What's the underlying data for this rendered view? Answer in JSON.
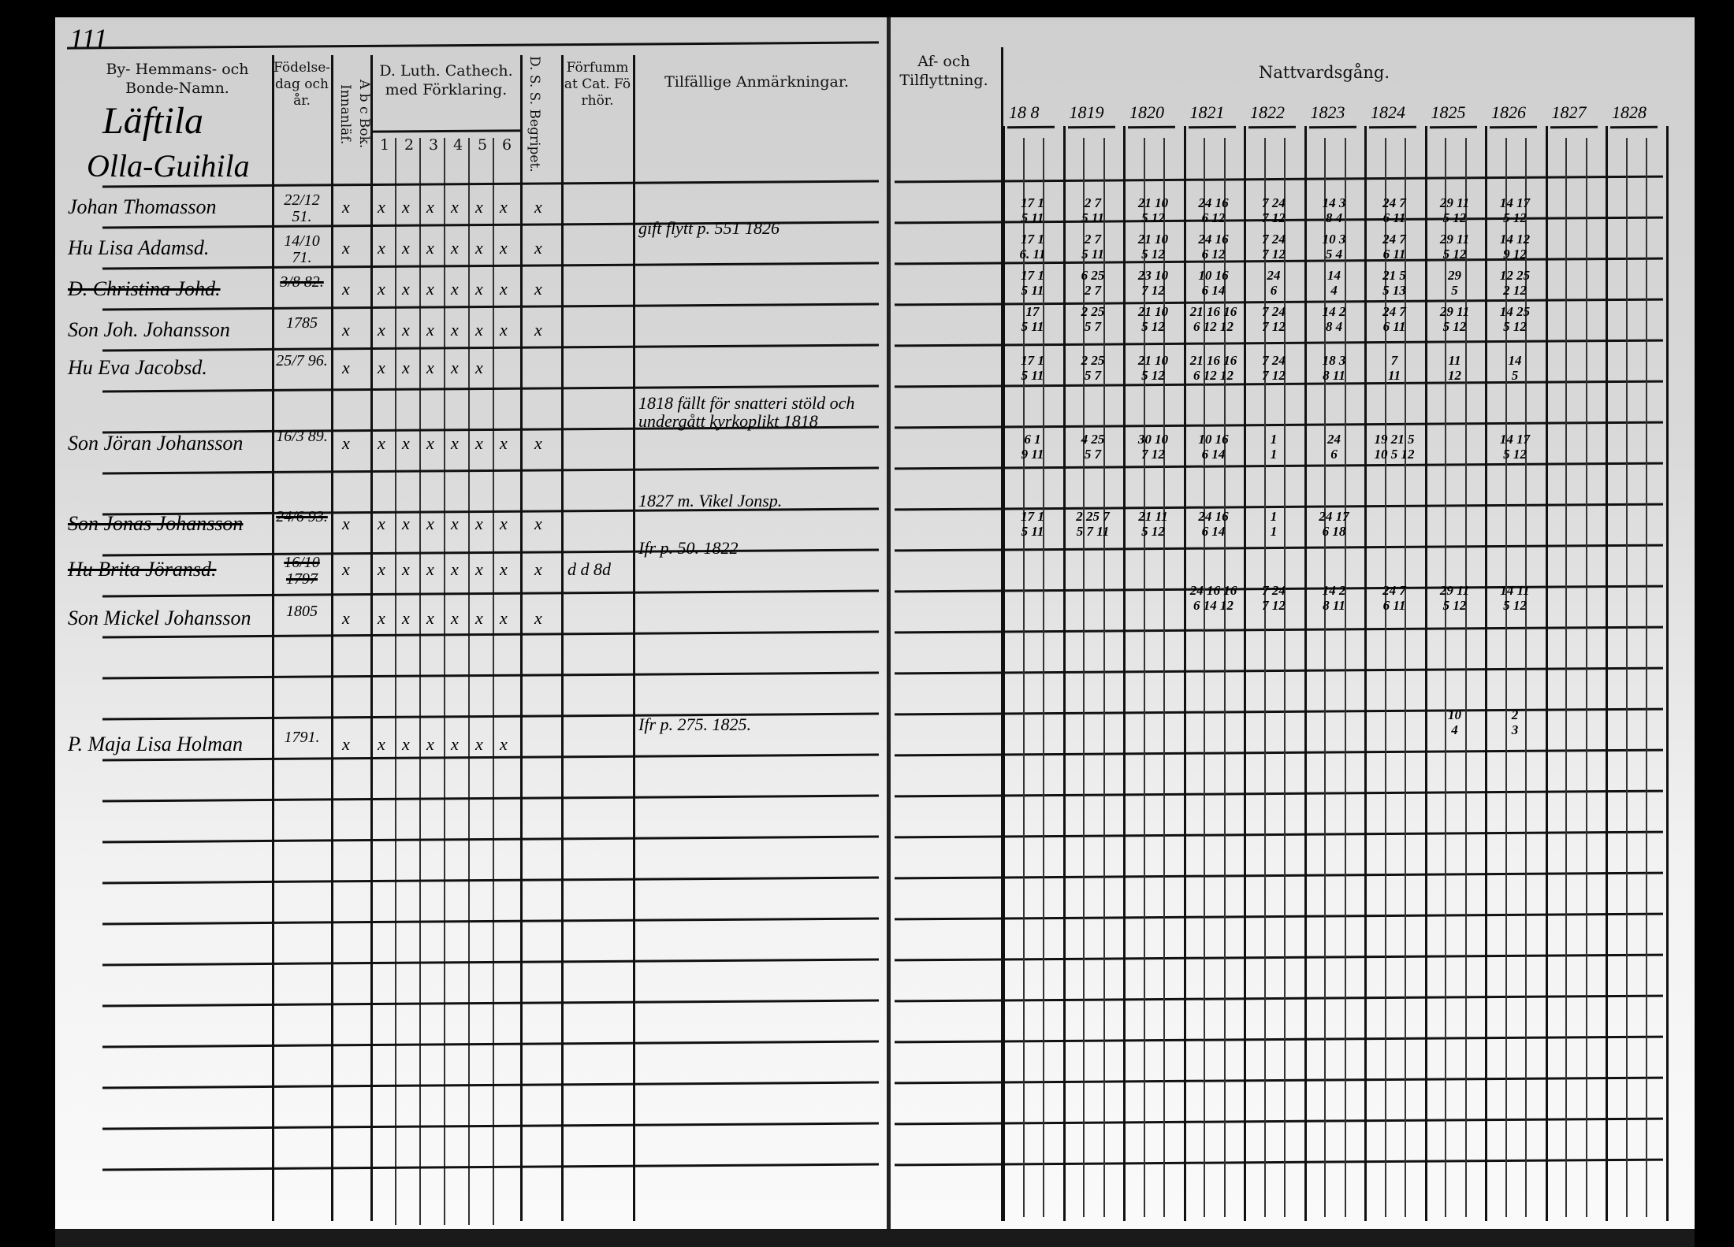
{
  "page_number": "111",
  "left_page": {
    "headers": {
      "name": "By- Hemmans- och Bonde-Namn.",
      "birth": "Födelse-dag och år.",
      "abc": "A b c Bok. Innanläf.",
      "catechism": "D. Luth. Cathech. med Förklaring.",
      "catechism_parts": [
        "1",
        "2",
        "3",
        "4",
        "5",
        "6"
      ],
      "dss": "D. S. S. Begripet.",
      "forfum": "Förfummat Cat. Förhör.",
      "remarks": "Tilfällige Anmärkningar."
    },
    "village": "Läftila",
    "farm": "Olla-Guihila",
    "persons": [
      {
        "name": "Johan Thomasson",
        "birth": "22/12 51.",
        "abc": "x",
        "cat": [
          "x",
          "x",
          "x",
          "x",
          "x",
          "x"
        ],
        "dss": "x",
        "forfum": "",
        "remark": "",
        "struck": false
      },
      {
        "name": "Hu Lisa Adamsd.",
        "birth": "14/10 71.",
        "abc": "x",
        "cat": [
          "x",
          "x",
          "x",
          "x",
          "x",
          "x"
        ],
        "dss": "x",
        "forfum": "",
        "remark": "gift flytt p. 551 1826",
        "struck": false
      },
      {
        "name": "D. Christina Johd.",
        "birth": "3/8 82.",
        "abc": "x",
        "cat": [
          "x",
          "x",
          "x",
          "x",
          "x",
          "x"
        ],
        "dss": "x",
        "forfum": "",
        "remark": "",
        "struck": true
      },
      {
        "name": "Son Joh. Johansson",
        "birth": "1785",
        "abc": "x",
        "cat": [
          "x",
          "x",
          "x",
          "x",
          "x",
          "x"
        ],
        "dss": "x",
        "forfum": "",
        "remark": "",
        "struck": false
      },
      {
        "name": "Hu Eva Jacobsd.",
        "birth": "25/7 96.",
        "abc": "x",
        "cat": [
          "x",
          "x",
          "x",
          "x",
          "x",
          ""
        ],
        "dss": "",
        "forfum": "",
        "remark": "",
        "struck": false
      },
      {
        "name": "Son Jöran Johansson",
        "birth": "16/3 89.",
        "abc": "x",
        "cat": [
          "x",
          "x",
          "x",
          "x",
          "x",
          "x"
        ],
        "dss": "x",
        "forfum": "",
        "remark": "1818 fällt för snatteri stöld och undergått kyrkoplikt 1818",
        "struck": false
      },
      {
        "name": "Son Jonas Johansson",
        "birth": "24/6 93.",
        "abc": "x",
        "cat": [
          "x",
          "x",
          "x",
          "x",
          "x",
          "x"
        ],
        "dss": "x",
        "forfum": "",
        "remark": "1827 m. Vikel Jonsp.",
        "struck": true
      },
      {
        "name": "Hu Brita Jöransd.",
        "birth": "16/10 1797",
        "abc": "x",
        "cat": [
          "x",
          "x",
          "x",
          "x",
          "x",
          "x"
        ],
        "dss": "x",
        "forfum": "d d 8d",
        "remark": "Ifr p. 50. 1822",
        "struck": true
      },
      {
        "name": "Son Mickel Johansson",
        "birth": "1805",
        "abc": "x",
        "cat": [
          "x",
          "x",
          "x",
          "x",
          "x",
          "x"
        ],
        "dss": "x",
        "forfum": "",
        "remark": "",
        "struck": false
      },
      {
        "name": "P. Maja Lisa Holman",
        "birth": "1791.",
        "abc": "x",
        "cat": [
          "x",
          "x",
          "x",
          "x",
          "x",
          "x"
        ],
        "dss": "",
        "forfum": "",
        "remark": "Ifr p. 275. 1825.",
        "struck": false
      }
    ]
  },
  "right_page": {
    "headers": {
      "moving": "Af- och Tilflyttning.",
      "communion": "Nattvardsgång."
    },
    "years": [
      "18 8",
      "1819",
      "1820",
      "1821",
      "1822",
      "1823",
      "1824",
      "1825",
      "1826",
      "1827",
      "1828"
    ],
    "communion_entries": [
      [
        "17 1\n5 11",
        "2 7\n5 11",
        "21 10\n5 12",
        "24 16\n6 12",
        "7 24\n7 12",
        "14 3\n8 4",
        "24 7\n6 11",
        "29 11\n5 12",
        "14 17\n5 12",
        "",
        ""
      ],
      [
        "17 1\n6. 11",
        "2 7\n5 11",
        "21 10\n5 12",
        "24 16\n6 12",
        "7 24\n7 12",
        "10 3\n5 4",
        "24 7\n6 11",
        "29 11\n5 12",
        "14 12\n9 12",
        "",
        ""
      ],
      [
        "17 1\n5 11",
        "6 25\n2 7",
        "23 10\n7 12",
        "10 16\n6 14",
        "24\n6",
        "14\n4",
        "21 5\n5 13",
        "29\n5",
        "12 25\n2 12",
        "",
        ""
      ],
      [
        "17\n5 11",
        "2 25\n5 7",
        "21 10\n5 12",
        "21 16 16\n6 12 12",
        "7 24\n7 12",
        "14 2\n8 4",
        "24 7\n6 11",
        "29 11\n5 12",
        "14 25\n5 12",
        "",
        ""
      ],
      [
        "17 1\n5 11",
        "2 25\n5 7",
        "21 10\n5 12",
        "21 16 16\n6 12 12",
        "7 24\n7 12",
        "18 3\n8 11",
        "7\n11",
        "11\n12",
        "14\n5",
        "",
        ""
      ],
      [
        "6 1\n9 11",
        "4 25\n5 7",
        "30 10\n7 12",
        "10 16\n6 14",
        "1\n1",
        "24\n6",
        "19 21 5\n10 5 12",
        "",
        "14 17\n5 12",
        "",
        ""
      ],
      [
        "17 1\n5 11",
        "2 25 7\n5 7 11",
        "21 11\n5 12",
        "24 16\n6 14",
        "1\n1",
        "24 17\n6 18",
        "",
        "",
        "",
        "",
        ""
      ],
      [
        "",
        "",
        "",
        "24 16 16\n6 14 12",
        "7 24\n7 12",
        "14 2\n8 11",
        "24 7\n6 11",
        "29 11\n5 12",
        "14 11\n5 12",
        "",
        ""
      ],
      [
        "",
        "",
        "",
        "",
        "",
        "",
        "",
        "10\n4",
        "2\n3",
        "",
        ""
      ]
    ]
  }
}
